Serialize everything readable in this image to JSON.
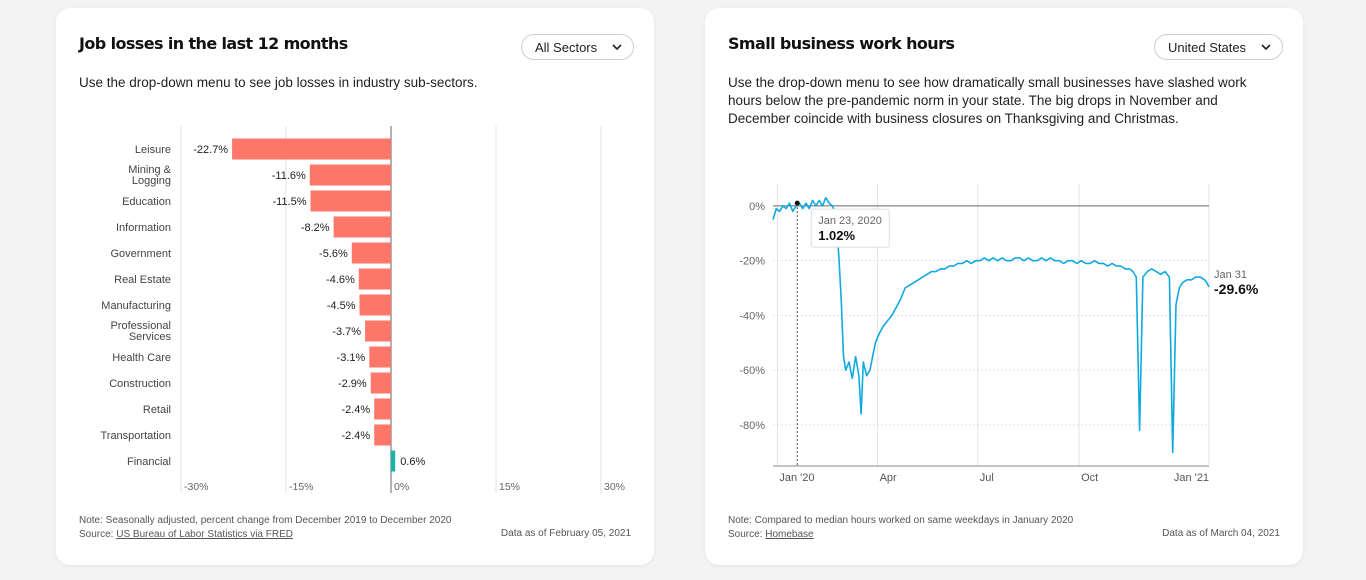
{
  "left": {
    "title": "Job losses in the last 12 months",
    "dropdown_value": "All Sectors",
    "description": "Use the drop-down menu to see job losses in industry sub-sectors.",
    "note": "Note: Seasonally adjusted, percent change from December 2019 to December 2020",
    "source_prefix": "Source: ",
    "source_link": "US Bureau of Labor Statistics via FRED",
    "data_as_of": "Data as of February 05, 2021",
    "colors": {
      "negative": "#ff766a",
      "positive": "#1cb3a6"
    }
  },
  "right": {
    "title": "Small business work hours",
    "dropdown_value": "United States",
    "description_lines": [
      "Use the drop-down menu to see how dramatically small businesses have slashed work",
      "hours below the pre-pandemic norm in your state. The big drops in November and",
      "December coincide with business closures on Thanksgiving and Christmas."
    ],
    "note": "Note: Compared to median hours worked on same weekdays in January 2020",
    "source_prefix": "Source: ",
    "source_link": "Homebase",
    "data_as_of": "Data as of March 04, 2021",
    "colors": {
      "line": "#10a9e0"
    }
  },
  "chart_data": [
    {
      "type": "bar",
      "orientation": "horizontal",
      "title": "Job losses in the last 12 months",
      "categories": [
        "Leisure",
        "Mining & Logging",
        "Education",
        "Information",
        "Government",
        "Real Estate",
        "Manufacturing",
        "Professional Services",
        "Health Care",
        "Construction",
        "Retail",
        "Transportation",
        "Financial"
      ],
      "values": [
        -22.7,
        -11.6,
        -11.5,
        -8.2,
        -5.6,
        -4.6,
        -4.5,
        -3.7,
        -3.1,
        -2.9,
        -2.4,
        -2.4,
        0.6
      ],
      "value_labels": [
        "-22.7%",
        "-11.6%",
        "-11.5%",
        "-8.2%",
        "-5.6%",
        "-4.6%",
        "-4.5%",
        "-3.7%",
        "-3.1%",
        "-2.9%",
        "-2.4%",
        "-2.4%",
        "0.6%"
      ],
      "xlim": [
        -30,
        30
      ],
      "xticks": [
        -30,
        -15,
        0,
        15,
        30
      ],
      "xtick_labels": [
        "-30%",
        "-15%",
        "0%",
        "15%",
        "30%"
      ],
      "grid": true
    },
    {
      "type": "line",
      "title": "Small business work hours",
      "ylim": [
        -95,
        8
      ],
      "yticks": [
        0,
        -20,
        -40,
        -60,
        -80
      ],
      "ytick_labels": [
        "0%",
        "-20%",
        "-40%",
        "-60%",
        "-80%"
      ],
      "x_range_days": [
        0,
        396
      ],
      "xticks_day": [
        4,
        95,
        186,
        278,
        400
      ],
      "xtick_labels": [
        "Jan '20",
        "Apr",
        "Jul",
        "Oct",
        "Jan '21"
      ],
      "tooltip": {
        "date": "Jan 23, 2020",
        "value_label": "1.02%",
        "day": 22,
        "value": 1.02
      },
      "end_label": {
        "date": "Jan 31",
        "value_label": "-29.6%",
        "value": -29.6
      },
      "series": [
        {
          "name": "United States",
          "points": [
            [
              0,
              -5
            ],
            [
              3,
              -1
            ],
            [
              6,
              -2
            ],
            [
              9,
              0
            ],
            [
              12,
              -1
            ],
            [
              15,
              1
            ],
            [
              18,
              -2
            ],
            [
              21,
              0
            ],
            [
              24,
              1
            ],
            [
              27,
              -1
            ],
            [
              30,
              1
            ],
            [
              33,
              -1
            ],
            [
              36,
              2
            ],
            [
              39,
              0
            ],
            [
              42,
              2
            ],
            [
              45,
              0
            ],
            [
              48,
              3
            ],
            [
              51,
              1
            ],
            [
              54,
              0
            ],
            [
              56,
              -2
            ],
            [
              58,
              -8
            ],
            [
              60,
              -20
            ],
            [
              62,
              -35
            ],
            [
              64,
              -55
            ],
            [
              66,
              -60
            ],
            [
              69,
              -57
            ],
            [
              72,
              -63
            ],
            [
              75,
              -55
            ],
            [
              78,
              -62
            ],
            [
              80,
              -76
            ],
            [
              82,
              -57
            ],
            [
              85,
              -62
            ],
            [
              88,
              -60
            ],
            [
              90,
              -56
            ],
            [
              93,
              -50
            ],
            [
              96,
              -47
            ],
            [
              100,
              -44
            ],
            [
              104,
              -42
            ],
            [
              108,
              -40
            ],
            [
              112,
              -37
            ],
            [
              116,
              -34
            ],
            [
              120,
              -30
            ],
            [
              124,
              -29
            ],
            [
              128,
              -28
            ],
            [
              132,
              -27
            ],
            [
              136,
              -26
            ],
            [
              140,
              -25
            ],
            [
              144,
              -24
            ],
            [
              148,
              -24
            ],
            [
              152,
              -23
            ],
            [
              156,
              -23
            ],
            [
              160,
              -22
            ],
            [
              164,
              -22
            ],
            [
              168,
              -21
            ],
            [
              172,
              -21
            ],
            [
              176,
              -20
            ],
            [
              180,
              -21
            ],
            [
              184,
              -20
            ],
            [
              188,
              -20
            ],
            [
              192,
              -19
            ],
            [
              196,
              -20
            ],
            [
              200,
              -19
            ],
            [
              204,
              -20
            ],
            [
              208,
              -19
            ],
            [
              212,
              -20
            ],
            [
              216,
              -20
            ],
            [
              220,
              -19
            ],
            [
              224,
              -19
            ],
            [
              228,
              -20
            ],
            [
              232,
              -19
            ],
            [
              236,
              -20
            ],
            [
              240,
              -20
            ],
            [
              244,
              -19
            ],
            [
              248,
              -20
            ],
            [
              252,
              -19
            ],
            [
              256,
              -20
            ],
            [
              260,
              -20
            ],
            [
              264,
              -21
            ],
            [
              268,
              -20
            ],
            [
              272,
              -20
            ],
            [
              276,
              -21
            ],
            [
              280,
              -20
            ],
            [
              284,
              -21
            ],
            [
              288,
              -21
            ],
            [
              292,
              -20
            ],
            [
              296,
              -21
            ],
            [
              300,
              -21
            ],
            [
              304,
              -22
            ],
            [
              308,
              -21
            ],
            [
              312,
              -22
            ],
            [
              316,
              -22
            ],
            [
              320,
              -23
            ],
            [
              324,
              -23
            ],
            [
              327,
              -24
            ],
            [
              330,
              -26
            ],
            [
              333,
              -82
            ],
            [
              336,
              -26
            ],
            [
              340,
              -24
            ],
            [
              344,
              -23
            ],
            [
              348,
              -24
            ],
            [
              352,
              -25
            ],
            [
              356,
              -24
            ],
            [
              360,
              -26
            ],
            [
              363,
              -90
            ],
            [
              366,
              -36
            ],
            [
              369,
              -30
            ],
            [
              372,
              -28
            ],
            [
              376,
              -27
            ],
            [
              380,
              -27
            ],
            [
              384,
              -26
            ],
            [
              388,
              -26
            ],
            [
              392,
              -27
            ],
            [
              394,
              -28
            ],
            [
              396,
              -29.6
            ]
          ]
        }
      ]
    }
  ]
}
